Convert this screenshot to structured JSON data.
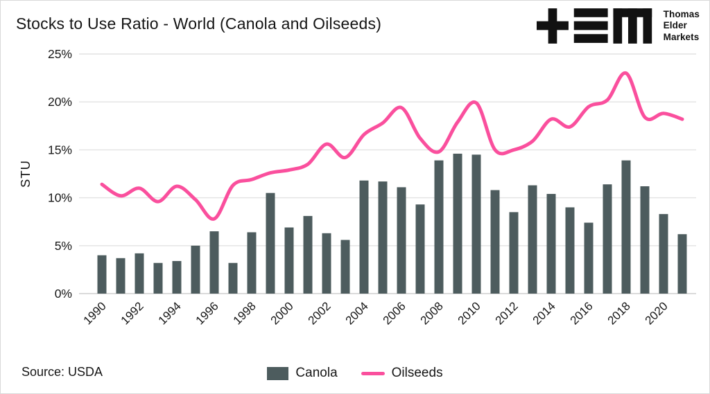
{
  "header": {
    "title": "Stocks to Use Ratio - World (Canola and Oilseeds)"
  },
  "logo": {
    "lines": [
      "Thomas",
      "Elder",
      "Markets"
    ]
  },
  "footer": {
    "source": "Source: USDA"
  },
  "colors": {
    "canola_bar": "#4d5c5e",
    "oilseeds_line": "#fa4f9d",
    "gridline": "#e2e2e2",
    "baseline": "#cfcfcf",
    "text": "#161616",
    "logo": "#111111"
  },
  "chart_data": {
    "type": "composed",
    "title": "Stocks to Use Ratio - World (Canola and Oilseeds)",
    "ylabel": "STU",
    "ylim": [
      0,
      25
    ],
    "grid": true,
    "legend_position": "bottom",
    "yticks": [
      0,
      5,
      10,
      15,
      20,
      25
    ],
    "ytick_labels": [
      "0%",
      "5%",
      "10%",
      "15%",
      "20%",
      "25%"
    ],
    "categories": [
      1990,
      1991,
      1992,
      1993,
      1994,
      1995,
      1996,
      1997,
      1998,
      1999,
      2000,
      2001,
      2002,
      2003,
      2004,
      2005,
      2006,
      2007,
      2008,
      2009,
      2010,
      2011,
      2012,
      2013,
      2014,
      2015,
      2016,
      2017,
      2018,
      2019,
      2020,
      2021
    ],
    "xtick_labels": [
      "1990",
      "1992",
      "1994",
      "1996",
      "1998",
      "2000",
      "2002",
      "2004",
      "2006",
      "2008",
      "2010",
      "2012",
      "2014",
      "2016",
      "2018",
      "2020"
    ],
    "series": [
      {
        "name": "Canola",
        "type": "bar",
        "values": [
          4.0,
          3.7,
          4.2,
          3.2,
          3.4,
          5.0,
          6.5,
          3.2,
          6.4,
          10.5,
          6.9,
          8.1,
          6.3,
          5.6,
          11.8,
          11.7,
          11.1,
          9.3,
          13.9,
          14.6,
          14.5,
          10.8,
          8.5,
          11.3,
          10.4,
          9.0,
          7.4,
          11.4,
          13.9,
          11.2,
          8.3,
          6.2
        ]
      },
      {
        "name": "Oilseeds",
        "type": "line",
        "values": [
          11.4,
          10.2,
          11.0,
          9.6,
          11.2,
          9.8,
          7.8,
          11.3,
          11.9,
          12.6,
          12.9,
          13.5,
          15.6,
          14.2,
          16.6,
          17.8,
          19.4,
          16.2,
          14.8,
          17.9,
          19.9,
          15.0,
          15.0,
          15.9,
          18.2,
          17.4,
          19.5,
          20.2,
          23.0,
          18.4,
          18.8,
          18.2
        ]
      }
    ]
  }
}
